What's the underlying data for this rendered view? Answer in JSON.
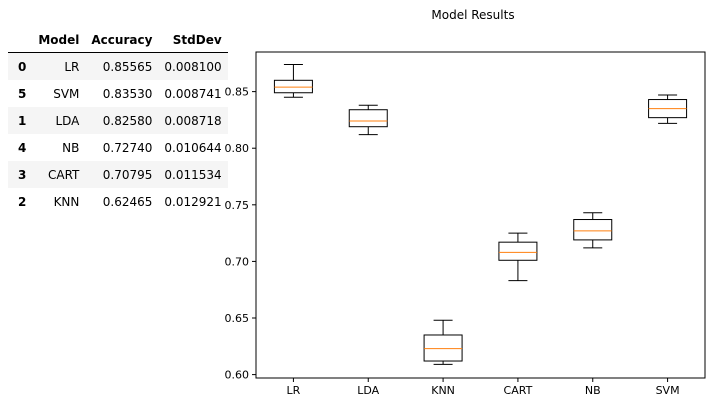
{
  "table": {
    "headers": [
      "",
      "Model",
      "Accuracy",
      "StdDev"
    ],
    "rows": [
      {
        "index": "0",
        "model": "LR",
        "accuracy": "0.85565",
        "stddev": "0.008100"
      },
      {
        "index": "5",
        "model": "SVM",
        "accuracy": "0.83530",
        "stddev": "0.008741"
      },
      {
        "index": "1",
        "model": "LDA",
        "accuracy": "0.82580",
        "stddev": "0.008718"
      },
      {
        "index": "4",
        "model": "NB",
        "accuracy": "0.72740",
        "stddev": "0.010644"
      },
      {
        "index": "3",
        "model": "CART",
        "accuracy": "0.70795",
        "stddev": "0.011534"
      },
      {
        "index": "2",
        "model": "KNN",
        "accuracy": "0.62465",
        "stddev": "0.012921"
      }
    ]
  },
  "chart_data": {
    "type": "box",
    "title": "Model Results",
    "categories": [
      "LR",
      "LDA",
      "KNN",
      "CART",
      "NB",
      "SVM"
    ],
    "boxes": [
      {
        "name": "LR",
        "whisker_low": 0.845,
        "q1": 0.849,
        "median": 0.854,
        "q3": 0.86,
        "whisker_high": 0.874
      },
      {
        "name": "LDA",
        "whisker_low": 0.812,
        "q1": 0.819,
        "median": 0.824,
        "q3": 0.834,
        "whisker_high": 0.838
      },
      {
        "name": "KNN",
        "whisker_low": 0.609,
        "q1": 0.612,
        "median": 0.623,
        "q3": 0.635,
        "whisker_high": 0.648
      },
      {
        "name": "CART",
        "whisker_low": 0.683,
        "q1": 0.701,
        "median": 0.708,
        "q3": 0.717,
        "whisker_high": 0.725
      },
      {
        "name": "NB",
        "whisker_low": 0.712,
        "q1": 0.719,
        "median": 0.727,
        "q3": 0.737,
        "whisker_high": 0.743
      },
      {
        "name": "SVM",
        "whisker_low": 0.822,
        "q1": 0.827,
        "median": 0.835,
        "q3": 0.843,
        "whisker_high": 0.847
      }
    ],
    "ylim": [
      0.597,
      0.885
    ],
    "yticks": [
      0.6,
      0.65,
      0.7,
      0.75,
      0.8,
      0.85
    ],
    "ytick_labels": [
      "0.60",
      "0.65",
      "0.70",
      "0.75",
      "0.80",
      "0.85"
    ],
    "xlabel": "",
    "ylabel": "",
    "grid": false,
    "colors": {
      "box": "#000000",
      "median": "#ff7f0e"
    }
  }
}
